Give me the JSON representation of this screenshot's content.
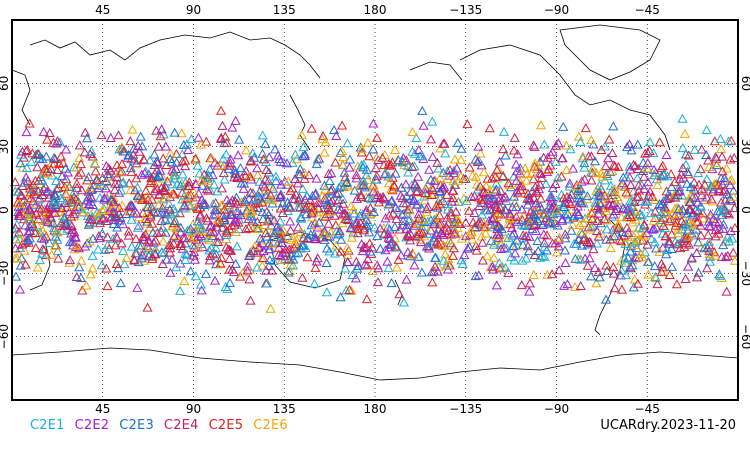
{
  "map": {
    "lon_ticks_top": [
      "45",
      "90",
      "135",
      "180",
      "−135",
      "−90",
      "−45"
    ],
    "lon_ticks_bottom": [
      "45",
      "90",
      "135",
      "180",
      "−135",
      "−90",
      "−45"
    ],
    "lat_ticks": [
      "60",
      "30",
      "0",
      "−30",
      "−60"
    ],
    "projection": "cylindrical equidistant, centered 180",
    "lat_range": [
      -90,
      90
    ],
    "lon_range": [
      0,
      360
    ],
    "grid": "dotted every 45° lon, 30° lat",
    "marker": "open-triangle"
  },
  "legend": [
    {
      "label": "C2E1",
      "color": "#1ab0d8"
    },
    {
      "label": "C2E2",
      "color": "#a020d0"
    },
    {
      "label": "C2E3",
      "color": "#1870d8"
    },
    {
      "label": "C2E4",
      "color": "#c02060"
    },
    {
      "label": "C2E5",
      "color": "#e02020"
    },
    {
      "label": "C2E6",
      "color": "#f0a800"
    }
  ],
  "stamp": "UCARdry.2023-11-20"
}
